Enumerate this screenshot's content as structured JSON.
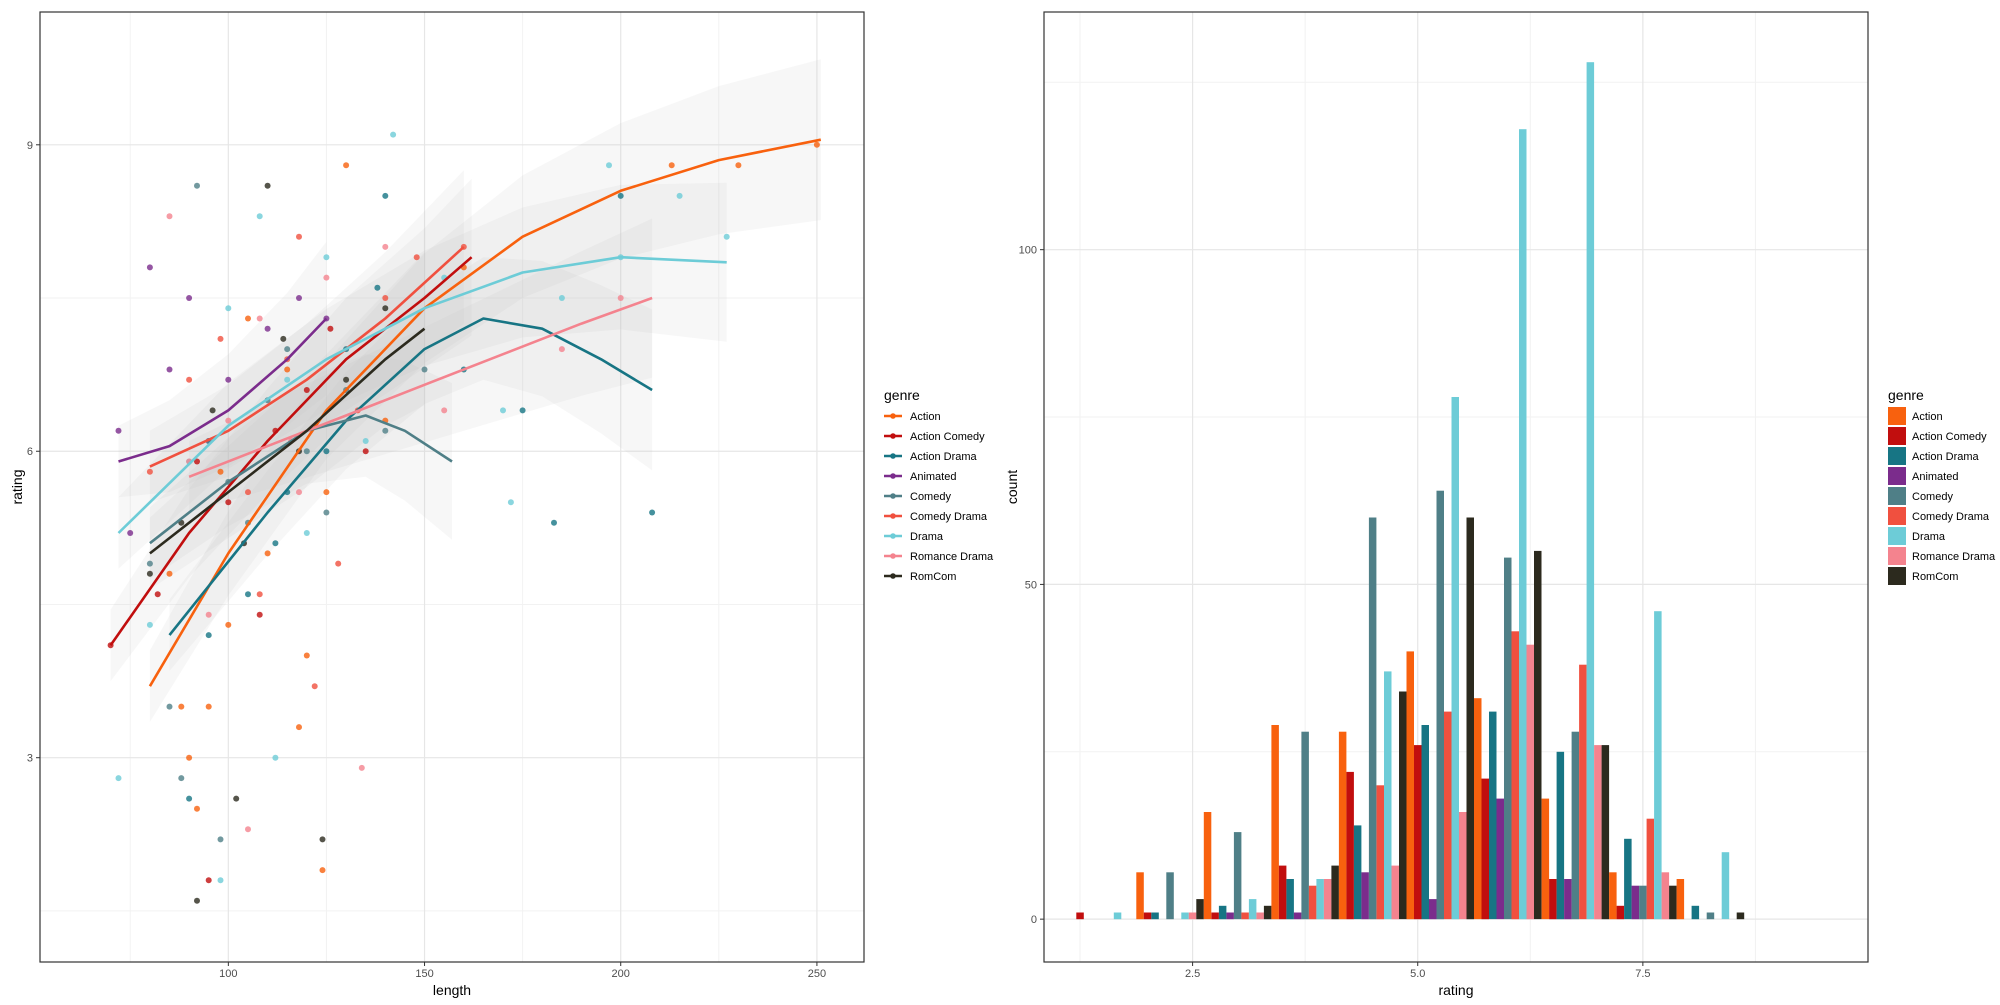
{
  "colors": {
    "Action": "#F8610E",
    "Action Comedy": "#C10E0E",
    "Action Drama": "#177584",
    "Animated": "#7B2C8C",
    "Comedy": "#4F7F87",
    "Comedy Drama": "#F0503F",
    "Drama": "#6DCCD7",
    "Romance Drama": "#F4838E",
    "RomCom": "#2C2A1E"
  },
  "chart_data": [
    {
      "type": "scatter",
      "xlabel": "length",
      "ylabel": "rating",
      "xlim": [
        52,
        262
      ],
      "ylim": [
        1.0,
        10.3
      ],
      "xticks": [
        100,
        150,
        200,
        250
      ],
      "yticks": [
        3,
        6,
        9
      ],
      "grid": true,
      "legend_title": "genre",
      "legend_position": "right",
      "legend": [
        "Action",
        "Action Comedy",
        "Action Drama",
        "Animated",
        "Comedy",
        "Comedy Drama",
        "Drama",
        "Romance Drama",
        "RomCom"
      ],
      "series": [
        {
          "name": "Action",
          "curve": [
            [
              80,
              3.7
            ],
            [
              100,
              5.0
            ],
            [
              125,
              6.4
            ],
            [
              150,
              7.4
            ],
            [
              175,
              8.1
            ],
            [
              200,
              8.55
            ],
            [
              225,
              8.85
            ],
            [
              251,
              9.05
            ]
          ],
          "points": [
            [
              250,
              9.0
            ],
            [
              230,
              8.8
            ],
            [
              213,
              8.8
            ],
            [
              160,
              7.8
            ],
            [
              140,
              6.3
            ],
            [
              125,
              5.6
            ],
            [
              110,
              5.0
            ],
            [
              100,
              4.3
            ],
            [
              95,
              3.5
            ],
            [
              90,
              3.0
            ],
            [
              118,
              3.3
            ],
            [
              124,
              1.9
            ],
            [
              92,
              2.5
            ],
            [
              85,
              4.8
            ],
            [
              115,
              6.8
            ],
            [
              105,
              7.3
            ],
            [
              130,
              8.8
            ],
            [
              98,
              5.8
            ],
            [
              120,
              4.0
            ],
            [
              88,
              3.5
            ]
          ]
        },
        {
          "name": "Action Comedy",
          "curve": [
            [
              70,
              4.1
            ],
            [
              90,
              5.2
            ],
            [
              110,
              6.1
            ],
            [
              130,
              6.9
            ],
            [
              150,
              7.5
            ],
            [
              162,
              7.9
            ]
          ],
          "points": [
            [
              70,
              4.1
            ],
            [
              82,
              4.6
            ],
            [
              95,
              1.8
            ],
            [
              100,
              5.5
            ],
            [
              112,
              6.2
            ],
            [
              120,
              6.6
            ],
            [
              126,
              7.2
            ],
            [
              108,
              4.4
            ],
            [
              92,
              5.9
            ],
            [
              135,
              6.0
            ]
          ]
        },
        {
          "name": "Action Drama",
          "curve": [
            [
              85,
              4.2
            ],
            [
              110,
              5.4
            ],
            [
              130,
              6.3
            ],
            [
              150,
              7.0
            ],
            [
              165,
              7.3
            ],
            [
              180,
              7.2
            ],
            [
              195,
              6.9
            ],
            [
              208,
              6.6
            ]
          ],
          "points": [
            [
              208,
              5.4
            ],
            [
              200,
              8.5
            ],
            [
              183,
              5.3
            ],
            [
              175,
              6.4
            ],
            [
              160,
              6.8
            ],
            [
              140,
              8.5
            ],
            [
              125,
              6.0
            ],
            [
              115,
              5.6
            ],
            [
              105,
              4.6
            ],
            [
              95,
              4.2
            ],
            [
              90,
              2.6
            ],
            [
              130,
              7.0
            ],
            [
              138,
              7.6
            ],
            [
              112,
              5.1
            ]
          ]
        },
        {
          "name": "Animated",
          "curve": [
            [
              72,
              5.9
            ],
            [
              85,
              6.05
            ],
            [
              100,
              6.4
            ],
            [
              115,
              6.9
            ],
            [
              125,
              7.3
            ]
          ],
          "points": [
            [
              72,
              6.2
            ],
            [
              75,
              5.2
            ],
            [
              80,
              7.8
            ],
            [
              85,
              6.8
            ],
            [
              90,
              7.5
            ],
            [
              95,
              6.1
            ],
            [
              100,
              6.7
            ],
            [
              110,
              7.2
            ],
            [
              118,
              7.5
            ],
            [
              125,
              7.3
            ]
          ]
        },
        {
          "name": "Comedy",
          "curve": [
            [
              80,
              5.1
            ],
            [
              100,
              5.7
            ],
            [
              120,
              6.2
            ],
            [
              135,
              6.35
            ],
            [
              145,
              6.2
            ],
            [
              157,
              5.9
            ]
          ],
          "points": [
            [
              80,
              4.9
            ],
            [
              85,
              3.5
            ],
            [
              88,
              2.8
            ],
            [
              95,
              6.1
            ],
            [
              100,
              5.7
            ],
            [
              105,
              5.3
            ],
            [
              110,
              6.5
            ],
            [
              115,
              7.0
            ],
            [
              120,
              6.0
            ],
            [
              125,
              5.4
            ],
            [
              130,
              6.6
            ],
            [
              140,
              6.2
            ],
            [
              150,
              6.8
            ],
            [
              92,
              8.6
            ],
            [
              98,
              2.2
            ]
          ]
        },
        {
          "name": "Comedy Drama",
          "curve": [
            [
              80,
              5.85
            ],
            [
              100,
              6.2
            ],
            [
              120,
              6.7
            ],
            [
              140,
              7.3
            ],
            [
              160,
              8.0
            ]
          ],
          "points": [
            [
              80,
              5.8
            ],
            [
              90,
              6.7
            ],
            [
              98,
              7.1
            ],
            [
              105,
              5.6
            ],
            [
              115,
              6.9
            ],
            [
              122,
              3.7
            ],
            [
              128,
              4.9
            ],
            [
              133,
              6.4
            ],
            [
              140,
              7.5
            ],
            [
              148,
              7.9
            ],
            [
              160,
              8.0
            ],
            [
              108,
              4.6
            ],
            [
              118,
              8.1
            ]
          ]
        },
        {
          "name": "Drama",
          "curve": [
            [
              72,
              5.2
            ],
            [
              100,
              6.25
            ],
            [
              125,
              6.9
            ],
            [
              150,
              7.4
            ],
            [
              175,
              7.75
            ],
            [
              200,
              7.9
            ],
            [
              227,
              7.85
            ]
          ],
          "points": [
            [
              72,
              2.8
            ],
            [
              80,
              4.3
            ],
            [
              90,
              5.9
            ],
            [
              100,
              7.4
            ],
            [
              108,
              8.3
            ],
            [
              115,
              6.7
            ],
            [
              125,
              7.9
            ],
            [
              135,
              6.1
            ],
            [
              142,
              9.1
            ],
            [
              155,
              7.7
            ],
            [
              170,
              6.4
            ],
            [
              172,
              5.5
            ],
            [
              185,
              7.5
            ],
            [
              200,
              7.9
            ],
            [
              215,
              8.5
            ],
            [
              227,
              8.1
            ],
            [
              197,
              8.8
            ],
            [
              98,
              1.8
            ],
            [
              112,
              3.0
            ],
            [
              120,
              5.2
            ]
          ]
        },
        {
          "name": "Romance Drama",
          "curve": [
            [
              90,
              5.75
            ],
            [
              110,
              6.05
            ],
            [
              130,
              6.35
            ],
            [
              150,
              6.65
            ],
            [
              170,
              6.95
            ],
            [
              190,
              7.25
            ],
            [
              208,
              7.5
            ]
          ],
          "points": [
            [
              85,
              8.3
            ],
            [
              90,
              5.9
            ],
            [
              95,
              4.4
            ],
            [
              100,
              6.3
            ],
            [
              108,
              7.3
            ],
            [
              116,
              6.1
            ],
            [
              125,
              7.7
            ],
            [
              134,
              2.9
            ],
            [
              140,
              8.0
            ],
            [
              155,
              6.4
            ],
            [
              185,
              7.0
            ],
            [
              200,
              7.5
            ],
            [
              105,
              2.3
            ],
            [
              118,
              5.6
            ]
          ]
        },
        {
          "name": "RomCom",
          "curve": [
            [
              80,
              5.0
            ],
            [
              100,
              5.6
            ],
            [
              120,
              6.2
            ],
            [
              140,
              6.9
            ],
            [
              150,
              7.2
            ]
          ],
          "points": [
            [
              80,
              4.8
            ],
            [
              88,
              5.3
            ],
            [
              92,
              1.6
            ],
            [
              96,
              6.4
            ],
            [
              104,
              5.1
            ],
            [
              110,
              8.6
            ],
            [
              118,
              6.0
            ],
            [
              124,
              2.2
            ],
            [
              130,
              6.7
            ],
            [
              140,
              7.4
            ],
            [
              102,
              2.6
            ],
            [
              114,
              7.1
            ]
          ]
        }
      ]
    },
    {
      "type": "bar",
      "xlabel": "rating",
      "ylabel": "count",
      "xlim": [
        0.85,
        10.0
      ],
      "ylim": [
        -6.4,
        135.5
      ],
      "xticks": [
        2.5,
        5.0,
        7.5
      ],
      "yticks": [
        0,
        50,
        100
      ],
      "grid": true,
      "legend_title": "genre",
      "legend_position": "right",
      "bin_width": 0.75,
      "bin_centers": [
        1.5,
        2.25,
        3.0,
        3.75,
        4.5,
        5.25,
        6.0,
        6.75,
        7.5,
        8.25,
        9.0
      ],
      "series": [
        {
          "name": "Action",
          "values": [
            0,
            7,
            16,
            29,
            28,
            40,
            33,
            18,
            7,
            6,
            0
          ]
        },
        {
          "name": "Action Comedy",
          "values": [
            1,
            1,
            1,
            8,
            22,
            26,
            21,
            6,
            2,
            0,
            0
          ]
        },
        {
          "name": "Action Drama",
          "values": [
            0,
            1,
            2,
            6,
            14,
            29,
            31,
            25,
            12,
            2,
            0
          ]
        },
        {
          "name": "Animated",
          "values": [
            0,
            0,
            1,
            1,
            7,
            3,
            18,
            6,
            5,
            0,
            0
          ]
        },
        {
          "name": "Comedy",
          "values": [
            0,
            7,
            13,
            28,
            60,
            64,
            54,
            28,
            5,
            1,
            0
          ]
        },
        {
          "name": "Comedy Drama",
          "values": [
            0,
            0,
            1,
            5,
            20,
            31,
            43,
            38,
            15,
            0,
            0
          ]
        },
        {
          "name": "Drama",
          "values": [
            1,
            1,
            3,
            6,
            37,
            78,
            118,
            128,
            46,
            10,
            0
          ]
        },
        {
          "name": "Romance Drama",
          "values": [
            0,
            1,
            1,
            6,
            8,
            16,
            41,
            26,
            7,
            0,
            0
          ]
        },
        {
          "name": "RomCom",
          "values": [
            0,
            3,
            2,
            8,
            34,
            60,
            55,
            26,
            5,
            1,
            0
          ]
        }
      ]
    }
  ]
}
